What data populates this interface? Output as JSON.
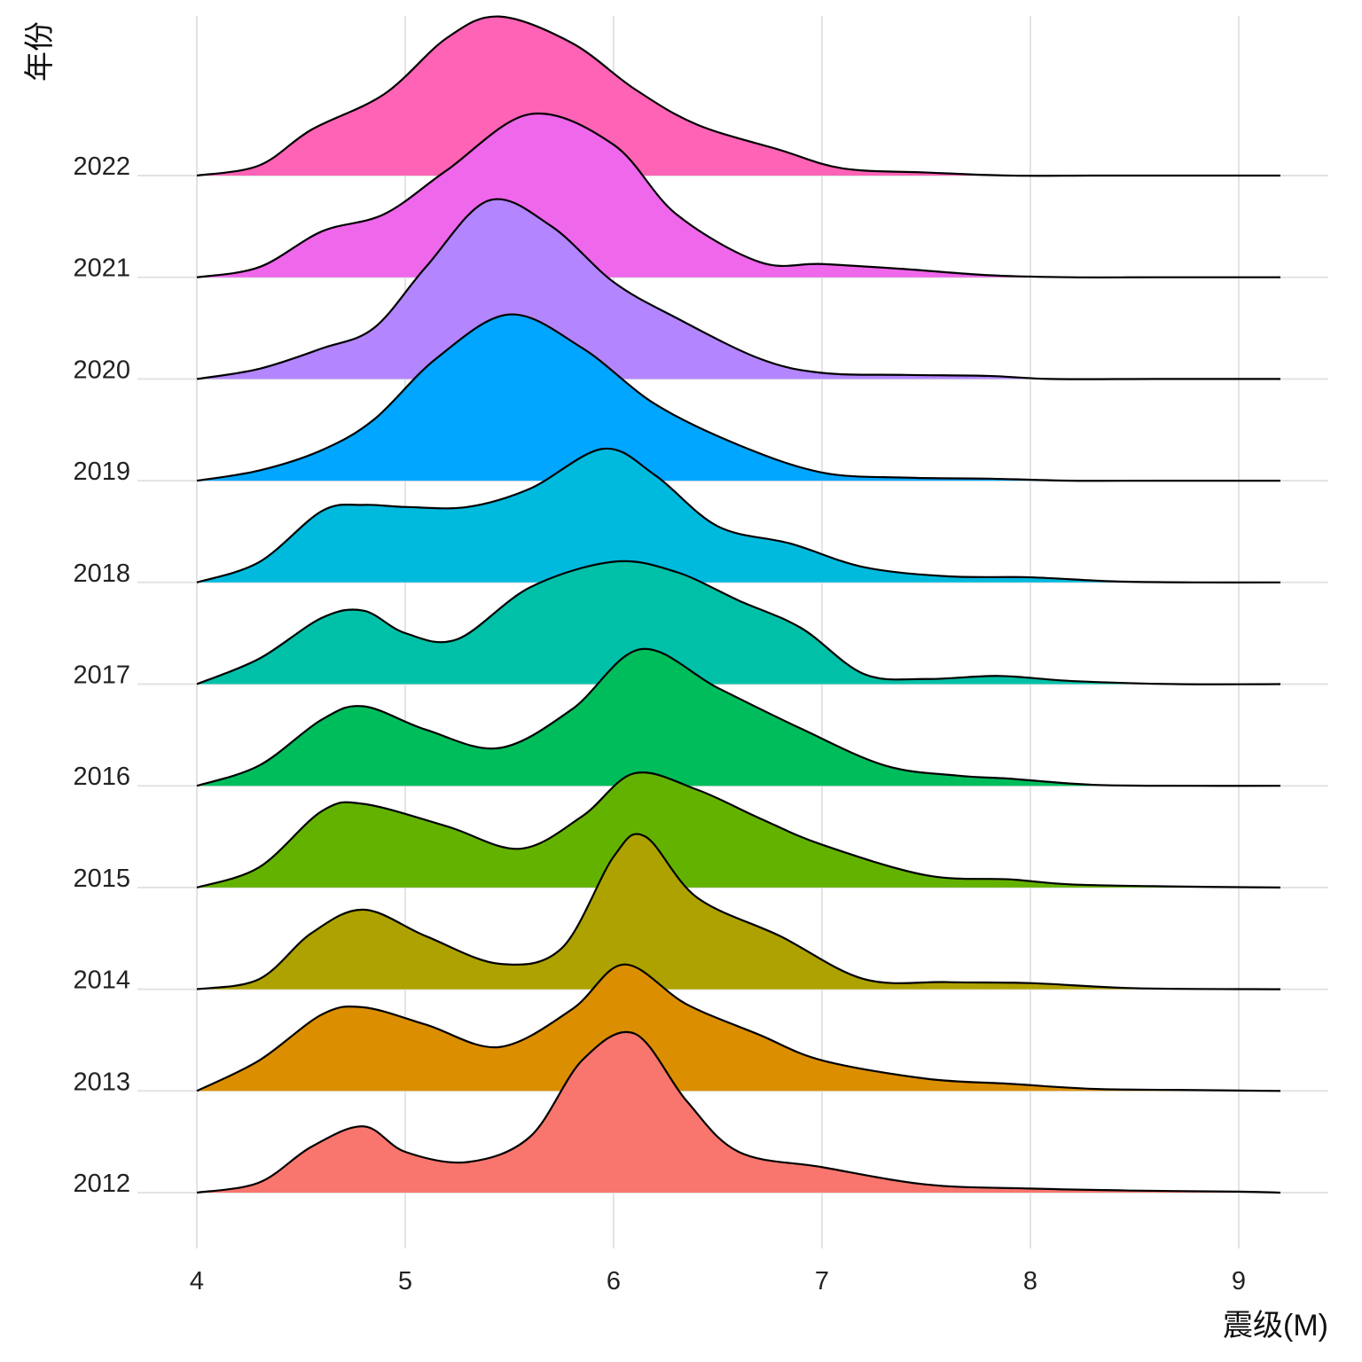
{
  "chart_data": {
    "type": "ridgeline",
    "xlabel": "震级(M)",
    "ylabel": "年份",
    "xlim": [
      4,
      9.2
    ],
    "xticks": [
      4,
      5,
      6,
      7,
      8,
      9
    ],
    "xtick_labels": [
      "4",
      "5",
      "6",
      "7",
      "8",
      "9"
    ],
    "grid": true,
    "legend": "none",
    "ridge_scale_rows": 2.2,
    "series": [
      {
        "name": "2012",
        "color": "#F8766D",
        "x": [
          4.0,
          4.3,
          4.55,
          4.8,
          5.0,
          5.3,
          5.6,
          5.85,
          6.1,
          6.35,
          6.6,
          7.0,
          7.5,
          8.0,
          8.5,
          9.0,
          9.2
        ],
        "density": [
          0.0,
          0.1,
          0.45,
          0.65,
          0.4,
          0.3,
          0.55,
          1.3,
          1.56,
          0.9,
          0.4,
          0.25,
          0.08,
          0.04,
          0.02,
          0.01,
          0.0
        ]
      },
      {
        "name": "2013",
        "color": "#DB8E00",
        "x": [
          4.0,
          4.3,
          4.6,
          4.8,
          5.1,
          5.45,
          5.8,
          6.05,
          6.35,
          6.7,
          7.0,
          7.5,
          7.9,
          8.3,
          8.7,
          9.2
        ],
        "density": [
          0.0,
          0.3,
          0.75,
          0.82,
          0.65,
          0.43,
          0.8,
          1.24,
          0.85,
          0.55,
          0.3,
          0.12,
          0.07,
          0.02,
          0.01,
          0.0
        ]
      },
      {
        "name": "2014",
        "color": "#AEA200",
        "x": [
          4.0,
          4.3,
          4.55,
          4.8,
          5.1,
          5.45,
          5.75,
          6.0,
          6.15,
          6.4,
          6.8,
          7.2,
          7.6,
          8.0,
          8.5,
          9.2
        ],
        "density": [
          0.0,
          0.1,
          0.55,
          0.78,
          0.52,
          0.25,
          0.4,
          1.3,
          1.5,
          0.9,
          0.52,
          0.1,
          0.07,
          0.06,
          0.01,
          0.0
        ]
      },
      {
        "name": "2015",
        "color": "#64B200",
        "x": [
          4.0,
          4.3,
          4.6,
          4.8,
          5.2,
          5.55,
          5.85,
          6.1,
          6.4,
          6.7,
          7.0,
          7.5,
          7.9,
          8.2,
          8.7,
          9.2
        ],
        "density": [
          0.0,
          0.2,
          0.75,
          0.82,
          0.6,
          0.38,
          0.7,
          1.12,
          0.96,
          0.68,
          0.42,
          0.12,
          0.08,
          0.03,
          0.01,
          0.0
        ]
      },
      {
        "name": "2016",
        "color": "#00BD5C",
        "x": [
          4.0,
          4.3,
          4.6,
          4.8,
          5.1,
          5.45,
          5.8,
          6.13,
          6.5,
          6.9,
          7.3,
          7.65,
          7.9,
          8.3,
          8.8,
          9.2
        ],
        "density": [
          0.0,
          0.2,
          0.65,
          0.78,
          0.55,
          0.37,
          0.75,
          1.34,
          0.96,
          0.56,
          0.2,
          0.1,
          0.07,
          0.01,
          0.0,
          0.0
        ]
      },
      {
        "name": "2017",
        "color": "#00C1A7",
        "x": [
          4.0,
          4.3,
          4.6,
          4.8,
          5.0,
          5.25,
          5.6,
          6.0,
          6.3,
          6.6,
          6.9,
          7.2,
          7.5,
          7.85,
          8.2,
          8.7,
          9.2
        ],
        "density": [
          0.0,
          0.25,
          0.65,
          0.72,
          0.5,
          0.44,
          0.95,
          1.2,
          1.1,
          0.82,
          0.55,
          0.1,
          0.05,
          0.08,
          0.03,
          0.0,
          0.0
        ]
      },
      {
        "name": "2018",
        "color": "#00BADE",
        "x": [
          4.0,
          4.3,
          4.6,
          4.8,
          5.0,
          5.3,
          5.6,
          5.95,
          6.2,
          6.5,
          6.85,
          7.2,
          7.6,
          8.0,
          8.4,
          8.8,
          9.2
        ],
        "density": [
          0.0,
          0.2,
          0.7,
          0.76,
          0.74,
          0.74,
          0.92,
          1.31,
          1.05,
          0.55,
          0.38,
          0.15,
          0.06,
          0.05,
          0.01,
          0.0,
          0.0
        ]
      },
      {
        "name": "2019",
        "color": "#00A6FF",
        "x": [
          4.0,
          4.3,
          4.6,
          4.85,
          5.15,
          5.5,
          5.85,
          6.2,
          6.6,
          7.0,
          7.4,
          7.8,
          8.2,
          8.6,
          9.2
        ],
        "density": [
          0.0,
          0.1,
          0.3,
          0.6,
          1.2,
          1.63,
          1.3,
          0.75,
          0.35,
          0.08,
          0.03,
          0.02,
          0.0,
          0.0,
          0.0
        ]
      },
      {
        "name": "2020",
        "color": "#B385FF",
        "x": [
          4.0,
          4.3,
          4.6,
          4.85,
          5.1,
          5.4,
          5.7,
          6.0,
          6.3,
          6.7,
          7.0,
          7.4,
          7.8,
          8.1,
          8.6,
          9.2
        ],
        "density": [
          0.0,
          0.1,
          0.3,
          0.5,
          1.1,
          1.75,
          1.5,
          0.95,
          0.6,
          0.2,
          0.06,
          0.04,
          0.03,
          0.0,
          0.0,
          0.0
        ]
      },
      {
        "name": "2021",
        "color": "#EF67EB",
        "x": [
          4.0,
          4.3,
          4.6,
          4.9,
          5.2,
          5.6,
          6.0,
          6.3,
          6.7,
          7.0,
          7.4,
          7.8,
          8.2,
          8.6,
          9.2
        ],
        "density": [
          0.0,
          0.1,
          0.45,
          0.62,
          1.05,
          1.6,
          1.3,
          0.62,
          0.15,
          0.13,
          0.08,
          0.02,
          0.0,
          0.0,
          0.0
        ]
      },
      {
        "name": "2022",
        "color": "#FF63B6",
        "x": [
          4.0,
          4.3,
          4.55,
          4.9,
          5.2,
          5.45,
          5.8,
          6.1,
          6.4,
          6.8,
          7.1,
          7.5,
          7.9,
          8.3,
          8.8,
          9.2
        ],
        "density": [
          0.0,
          0.1,
          0.45,
          0.8,
          1.35,
          1.56,
          1.3,
          0.85,
          0.5,
          0.25,
          0.07,
          0.03,
          0.0,
          0.0,
          0.0,
          0.0
        ]
      }
    ]
  }
}
